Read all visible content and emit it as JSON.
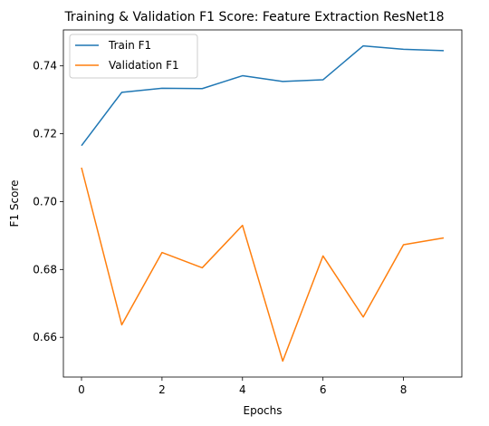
{
  "chart_data": {
    "type": "line",
    "title": "Training & Validation F1 Score: Feature Extraction ResNet18",
    "xlabel": "Epochs",
    "ylabel": "F1 Score",
    "x": [
      0,
      1,
      2,
      3,
      4,
      5,
      6,
      7,
      8,
      9
    ],
    "xlim": [
      -0.45,
      9.45
    ],
    "ylim": [
      0.6483,
      0.7506
    ],
    "xticks": [
      0,
      2,
      4,
      6,
      8
    ],
    "yticks": [
      0.66,
      0.68,
      0.7,
      0.72,
      0.74
    ],
    "ytick_labels": [
      "0.66",
      "0.68",
      "0.70",
      "0.72",
      "0.74"
    ],
    "grid": false,
    "legend_position": "top-left",
    "series": [
      {
        "name": "Train F1",
        "color": "#1f77b4",
        "values": [
          0.7165,
          0.7322,
          0.7334,
          0.7333,
          0.7371,
          0.7354,
          0.7359,
          0.7459,
          0.7449,
          0.7445
        ]
      },
      {
        "name": "Validation F1",
        "color": "#ff7f0e",
        "values": [
          0.71,
          0.6637,
          0.685,
          0.6805,
          0.693,
          0.653,
          0.684,
          0.666,
          0.6873,
          0.6893
        ]
      }
    ]
  }
}
